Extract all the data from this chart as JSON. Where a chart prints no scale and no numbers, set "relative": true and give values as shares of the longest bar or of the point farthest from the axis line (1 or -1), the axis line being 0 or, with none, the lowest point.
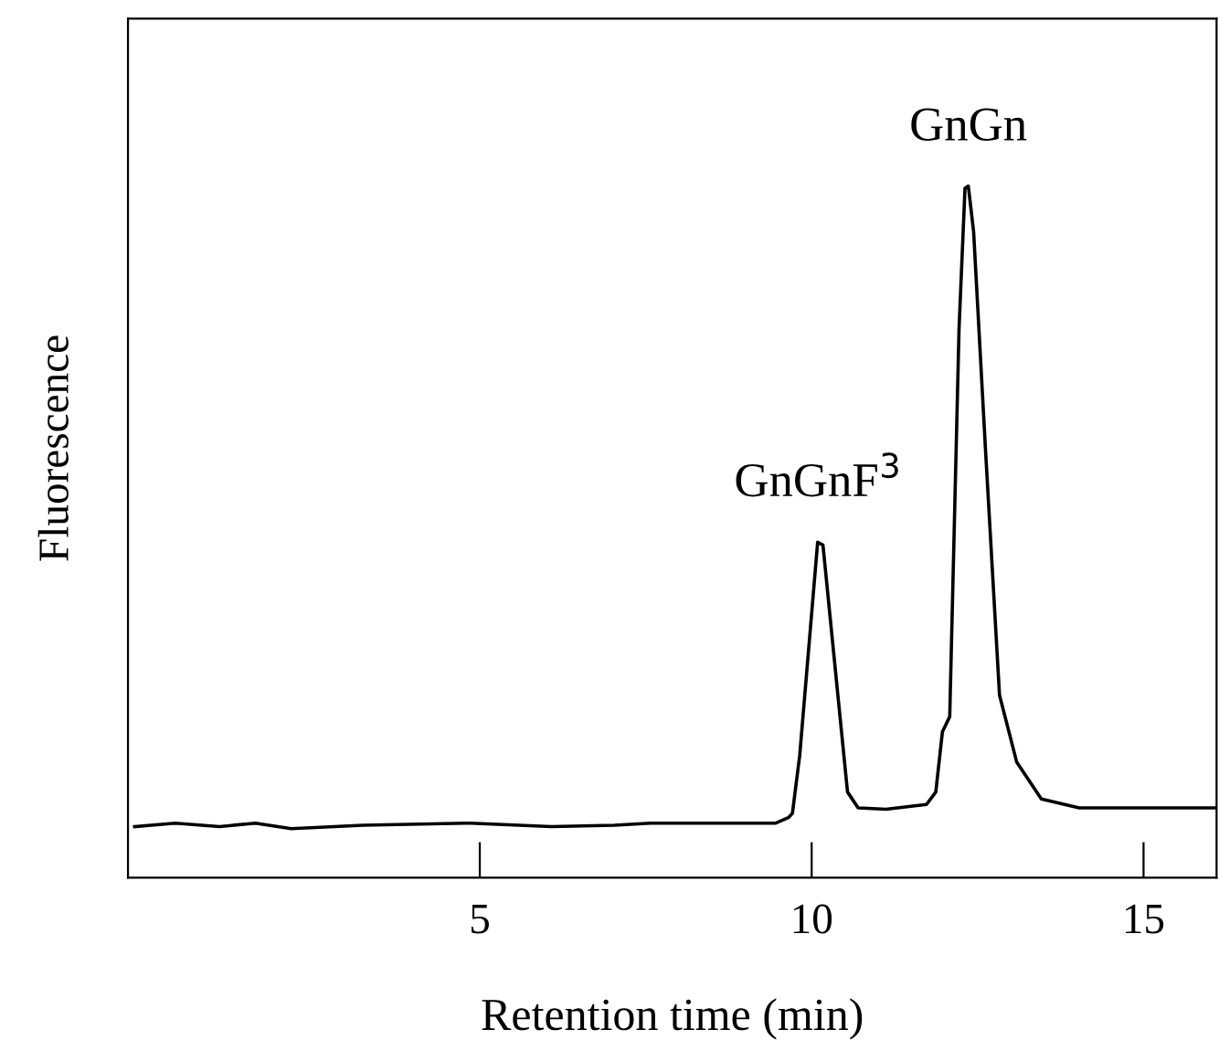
{
  "chart_data": {
    "type": "line",
    "relative": true,
    "xlabel": "Retention time (min)",
    "ylabel": "Fluorescence",
    "xlim": [
      -0.3,
      16.1
    ],
    "xticks": [
      5,
      10,
      15
    ],
    "tick_labels": "x",
    "grid": false,
    "legend": false,
    "series": [
      {
        "color": "#000000",
        "x": [
          -0.2,
          0.41,
          1.08,
          1.62,
          2.16,
          3.24,
          4.86,
          6.08,
          7.03,
          7.57,
          9.46,
          9.65,
          9.71,
          9.82,
          10.09,
          10.17,
          10.54,
          10.7,
          11.12,
          11.73,
          11.87,
          11.97,
          12.08,
          12.22,
          12.31,
          12.36,
          12.44,
          12.62,
          12.83,
          13.09,
          13.46,
          14.03,
          15.06,
          16.1
        ],
        "values": [
          0.074,
          0.079,
          0.074,
          0.079,
          0.071,
          0.076,
          0.079,
          0.074,
          0.076,
          0.079,
          0.079,
          0.087,
          0.093,
          0.177,
          0.485,
          0.481,
          0.124,
          0.101,
          0.099,
          0.106,
          0.124,
          0.211,
          0.233,
          0.793,
          0.997,
          1.0,
          0.934,
          0.617,
          0.264,
          0.167,
          0.114,
          0.101,
          0.101,
          0.101
        ]
      }
    ],
    "annotations": [
      {
        "text": "GnGnF$^{3}$",
        "x": 10.1,
        "y": 0.485
      },
      {
        "text": "GnGn",
        "x": 12.36,
        "y": 1.0
      }
    ]
  }
}
